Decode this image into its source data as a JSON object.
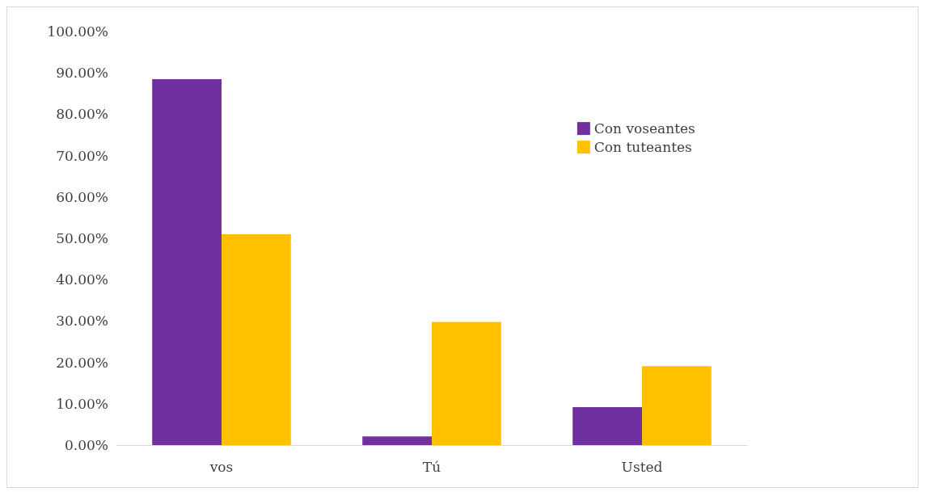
{
  "chart_data": {
    "type": "bar",
    "categories": [
      "vos",
      "Tú",
      "Usted"
    ],
    "series": [
      {
        "name": "Con voseantes",
        "color": "#7030a0",
        "values": [
          88.5,
          2.1,
          9.2
        ]
      },
      {
        "name": "Con tuteantes",
        "color": "#ffc000",
        "values": [
          51.0,
          29.8,
          19.1
        ]
      }
    ],
    "ylim": [
      0,
      100
    ],
    "yticks": [
      {
        "value": 0,
        "label": "0.00%"
      },
      {
        "value": 10,
        "label": "10.00%"
      },
      {
        "value": 20,
        "label": "20.00%"
      },
      {
        "value": 30,
        "label": "30.00%"
      },
      {
        "value": 40,
        "label": "40.00%"
      },
      {
        "value": 50,
        "label": "50.00%"
      },
      {
        "value": 60,
        "label": "60.00%"
      },
      {
        "value": 70,
        "label": "70.00%"
      },
      {
        "value": 80,
        "label": "80.00%"
      },
      {
        "value": 90,
        "label": "90.00%"
      },
      {
        "value": 100,
        "label": "100.00%"
      }
    ],
    "grid": false,
    "legend": "top right"
  }
}
